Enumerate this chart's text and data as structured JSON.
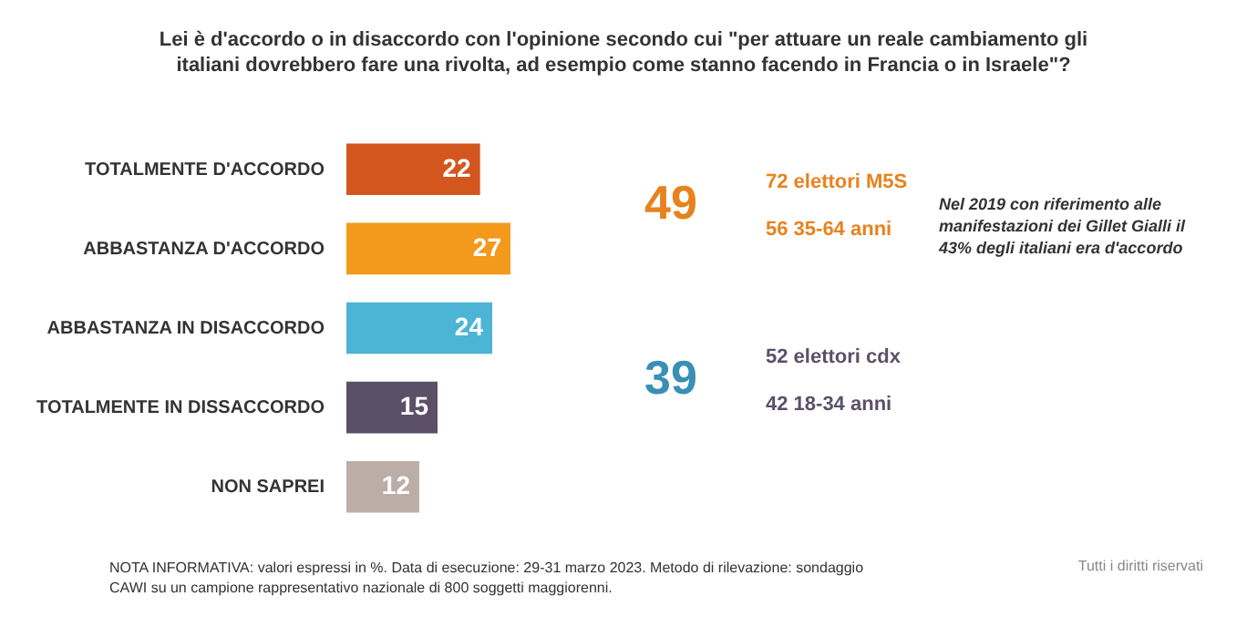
{
  "chart_data": {
    "type": "bar",
    "orientation": "horizontal",
    "data_labels": true,
    "title": "Lei è d'accordo o in disaccordo con l'opinione secondo cui \"per attuare un reale cambiamento gli italiani dovrebbero fare una rivolta, ad esempio come stanno facendo in Francia o in Israele\"?",
    "categories": [
      "TOTALMENTE D'ACCORDO",
      "ABBASTANZA D'ACCORDO",
      "ABBASTANZA IN DISACCORDO",
      "TOTALMENTE IN DISSACCORDO",
      "NON SAPREI"
    ],
    "values": [
      22,
      27,
      24,
      15,
      12
    ],
    "colors": [
      "#d4561f",
      "#f39a1c",
      "#4cb4d4",
      "#5b5068",
      "#bcaea6"
    ],
    "annotations": [
      "49",
      "72 elettori M5S",
      "56 35-64 anni",
      "Nel 2019 con riferimento alle manifestazioni dei Gillet Gialli il 43% degli italiani era d'accordo",
      "39",
      "52 elettori cdx",
      "42 18-34 anni",
      "NOTA INFORMATIVA: valori espressi in %. Data di esecuzione: 29-31 marzo 2023. Metodo di rilevazione: sondaggio CAWI su un campione rappresentativo nazionale di 800 soggetti maggiorenni.",
      "Tutti i diritti riservati"
    ]
  }
}
